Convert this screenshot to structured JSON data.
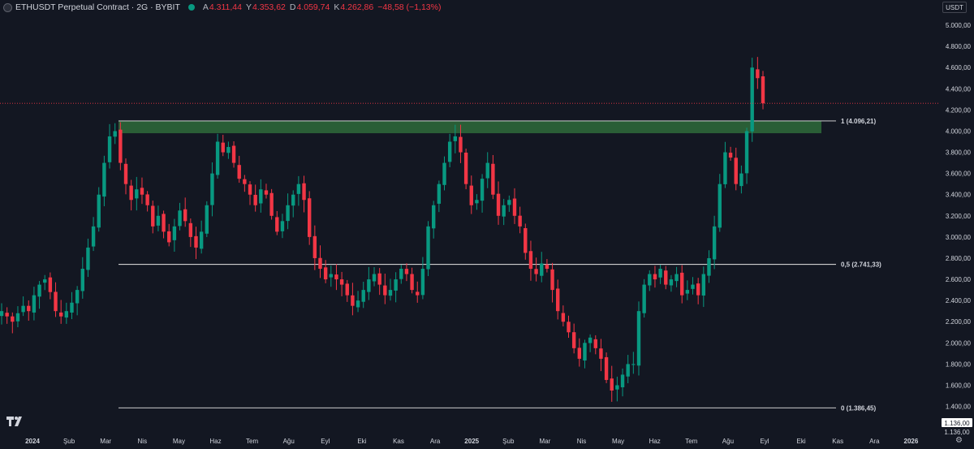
{
  "header": {
    "symbol": "ETHUSDT Perpetual Contract · 2G · BYBIT",
    "open_label": "A",
    "open": "4.311,44",
    "high_label": "Y",
    "high": "4.353,62",
    "low_label": "D",
    "low": "4.059,74",
    "close_label": "K",
    "close": "4.262,86",
    "change": "−48,58 (−1,13%)"
  },
  "price_unit": "USDT",
  "current_price_label": "4.262,86",
  "bottom_price_labels": [
    "1.136,00",
    "1.136,00"
  ],
  "colors": {
    "background": "#131722",
    "up": "#089981",
    "down": "#f23645",
    "zone": "#2f6b3a",
    "fib_line": "#e6e6e6",
    "text": "#d1d4dc"
  },
  "icons": {
    "logo": "tradingview-logo-icon",
    "settings": "settings-icon"
  },
  "chart_data": {
    "type": "candlestick",
    "x_ticks": [
      "2024",
      "Şub",
      "Mar",
      "Nis",
      "May",
      "Haz",
      "Tem",
      "Ağu",
      "Eyl",
      "Eki",
      "Kas",
      "Ara",
      "2025",
      "Şub",
      "Mar",
      "Nis",
      "May",
      "Haz",
      "Tem",
      "Ağu",
      "Eyl",
      "Eki",
      "Kas",
      "Ara",
      "2026"
    ],
    "y_ticks": [
      "5.000,00",
      "4.800,00",
      "4.600,00",
      "4.400,00",
      "4.200,00",
      "4.000,00",
      "3.800,00",
      "3.600,00",
      "3.400,00",
      "3.200,00",
      "3.000,00",
      "2.800,00",
      "2.600,00",
      "2.400,00",
      "2.200,00",
      "2.000,00",
      "1.800,00",
      "1.600,00",
      "1.400,00"
    ],
    "ylim": [
      1136,
      5100
    ],
    "fib_levels": [
      {
        "label": "1 (4.096,21)",
        "value": 4096.21
      },
      {
        "label": "0,5 (2.741,33)",
        "value": 2741.33
      },
      {
        "label": "0 (1.386,45)",
        "value": 1386.45
      }
    ],
    "zone": {
      "from": 3980,
      "to": 4096.21
    },
    "current_price": 4262.86,
    "closes": [
      2300,
      2250,
      2200,
      2280,
      2350,
      2300,
      2450,
      2550,
      2600,
      2480,
      2300,
      2250,
      2300,
      2380,
      2500,
      2700,
      2900,
      3100,
      3400,
      3700,
      3950,
      4000,
      3700,
      3500,
      3350,
      3450,
      3400,
      3300,
      3100,
      3200,
      3050,
      2950,
      3100,
      3250,
      3150,
      3000,
      2900,
      3050,
      3300,
      3600,
      3900,
      3800,
      3850,
      3700,
      3550,
      3500,
      3400,
      3300,
      3450,
      3400,
      3200,
      3050,
      3150,
      3300,
      3400,
      3500,
      3350,
      3000,
      2800,
      2700,
      2600,
      2650,
      2600,
      2550,
      2450,
      2350,
      2400,
      2500,
      2600,
      2650,
      2550,
      2450,
      2500,
      2600,
      2700,
      2650,
      2500,
      2450,
      2700,
      3100,
      3300,
      3500,
      3700,
      3900,
      3950,
      3800,
      3500,
      3300,
      3350,
      3550,
      3700,
      3400,
      3200,
      3300,
      3350,
      3200,
      3100,
      2850,
      2700,
      2650,
      2750,
      2700,
      2500,
      2300,
      2200,
      2100,
      1950,
      1850,
      2000,
      2050,
      1950,
      1850,
      1650,
      1550,
      1600,
      1700,
      1800,
      1800,
      2300,
      2550,
      2650,
      2600,
      2700,
      2550,
      2600,
      2650,
      2450,
      2500,
      2550,
      2450,
      2650,
      2800,
      3100,
      3500,
      3800,
      3750,
      3500,
      3600,
      4000,
      4600,
      4500,
      4262.86
    ]
  }
}
